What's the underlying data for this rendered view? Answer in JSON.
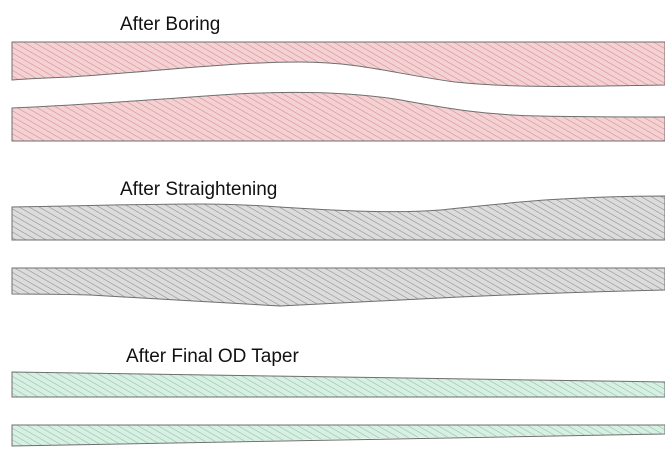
{
  "stages": [
    {
      "label": "After Boring",
      "fill": "#f4d1d3",
      "hatch": "#d58a90"
    },
    {
      "label": "After Straightening",
      "fill": "#dcdcdc",
      "hatch": "#8a8a8a"
    },
    {
      "label": "After Final OD Taper",
      "fill": "#d8efe3",
      "hatch": "#86c4a3"
    }
  ],
  "outline_color": "#6f6f6f"
}
